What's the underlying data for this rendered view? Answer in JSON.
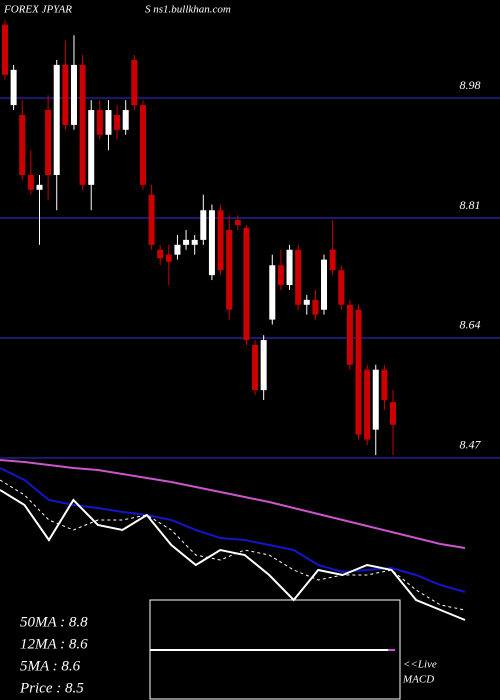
{
  "chart_data": [
    {
      "type": "candlestick",
      "title": "FOREX JPYAR",
      "subtitle": "S ns1.bullkhan.com",
      "open": [
        9.084,
        8.97,
        8.956,
        8.871,
        8.85,
        8.963,
        8.871,
        9.027,
        8.942,
        9.027,
        8.857,
        8.963,
        8.928,
        8.956,
        8.935,
        9.034,
        8.97,
        8.843,
        8.765,
        8.758,
        8.758,
        8.772,
        8.772,
        8.779,
        8.729,
        8.821,
        8.793,
        8.807,
        8.796,
        8.63,
        8.566,
        8.666,
        8.743,
        8.715,
        8.765,
        8.687,
        8.694,
        8.68,
        8.765,
        8.736,
        8.687,
        8.68,
        8.595,
        8.51,
        8.595,
        8.549
      ],
      "high": [
        9.091,
        9.027,
        8.977,
        8.906,
        8.871,
        8.984,
        9.034,
        9.062,
        9.069,
        9.041,
        8.977,
        8.977,
        8.977,
        8.97,
        8.977,
        9.041,
        8.977,
        8.857,
        8.772,
        8.772,
        8.786,
        8.793,
        8.786,
        8.843,
        8.829,
        8.829,
        8.814,
        8.814,
        8.8,
        8.637,
        8.644,
        8.758,
        8.765,
        8.772,
        8.772,
        8.701,
        8.708,
        8.758,
        8.807,
        8.743,
        8.694,
        8.687,
        8.602,
        8.602,
        8.602,
        8.566
      ],
      "low": [
        9.006,
        8.963,
        8.864,
        8.843,
        8.772,
        8.836,
        8.821,
        8.935,
        8.935,
        8.85,
        8.821,
        8.921,
        8.906,
        8.921,
        8.928,
        8.963,
        8.85,
        8.765,
        8.743,
        8.715,
        8.751,
        8.765,
        8.758,
        8.772,
        8.722,
        8.729,
        8.666,
        8.793,
        8.63,
        8.559,
        8.552,
        8.659,
        8.708,
        8.708,
        8.68,
        8.673,
        8.666,
        8.673,
        8.729,
        8.68,
        8.595,
        8.496,
        8.488,
        8.474,
        8.538,
        8.474
      ],
      "close": [
        9.013,
        9.02,
        8.871,
        8.85,
        8.857,
        8.871,
        9.027,
        8.942,
        9.027,
        8.857,
        8.963,
        8.928,
        8.963,
        8.935,
        8.963,
        8.97,
        8.857,
        8.772,
        8.753,
        8.748,
        8.772,
        8.779,
        8.779,
        8.821,
        8.821,
        8.736,
        8.68,
        8.8,
        8.637,
        8.566,
        8.637,
        8.743,
        8.715,
        8.765,
        8.687,
        8.694,
        8.673,
        8.751,
        8.736,
        8.687,
        8.602,
        8.503,
        8.496,
        8.595,
        8.552,
        8.517
      ],
      "up_color": "#ffffff",
      "down_color": "#cc0000",
      "grid_color": "#1a1a70",
      "ylim": [
        8.467,
        9.119
      ],
      "yticks": [
        8.98,
        8.81,
        8.64,
        8.47
      ],
      "grid": true
    },
    {
      "type": "line",
      "ylim": [
        0,
        240
      ],
      "series": [
        {
          "name": "50MA : 8.8",
          "color": "#cc55cc",
          "style": "solid",
          "values": [
            240,
            238,
            235,
            232,
            230,
            226,
            222,
            218,
            213,
            208,
            203,
            198,
            192,
            186,
            180,
            174,
            168,
            162,
            156,
            152
          ]
        },
        {
          "name": "12MA : 8.6",
          "color": "#1414c8",
          "style": "solid",
          "values": [
            232,
            220,
            200,
            195,
            192,
            188,
            185,
            180,
            170,
            162,
            160,
            155,
            150,
            135,
            128,
            130,
            132,
            125,
            115,
            108
          ]
        },
        {
          "name": "5MA : 8.6",
          "color": "#ffffff",
          "style": "dashed",
          "values": [
            220,
            205,
            180,
            170,
            180,
            180,
            185,
            170,
            145,
            140,
            150,
            145,
            130,
            120,
            125,
            125,
            130,
            110,
            95,
            90
          ]
        },
        {
          "name": "Price : 8.5",
          "color": "#ffffff",
          "style": "solid",
          "values": [
            210,
            195,
            160,
            200,
            175,
            170,
            185,
            155,
            135,
            150,
            145,
            125,
            100,
            130,
            125,
            135,
            130,
            100,
            90,
            80
          ]
        }
      ],
      "annotation": [
        "<<Live",
        "MACD"
      ]
    }
  ]
}
